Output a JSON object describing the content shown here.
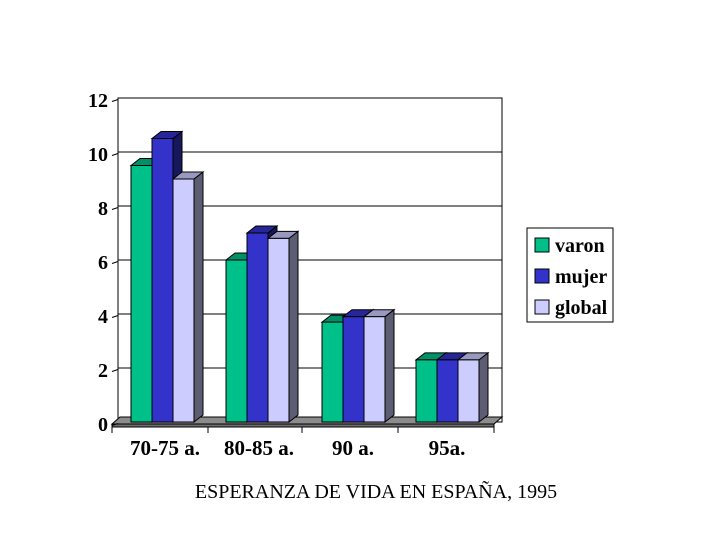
{
  "chart_data": {
    "type": "bar",
    "title": "",
    "xlabel": "",
    "ylabel": "",
    "categories": [
      "70-75 a.",
      "80-85 a.",
      "90 a.",
      "95a."
    ],
    "series": [
      {
        "name": "varon",
        "values": [
          9.5,
          6.0,
          3.7,
          2.3
        ]
      },
      {
        "name": "mujer",
        "values": [
          10.5,
          7.0,
          3.9,
          2.3
        ]
      },
      {
        "name": "global",
        "values": [
          9.0,
          6.8,
          3.9,
          2.3
        ]
      }
    ],
    "ylim": [
      0,
      12
    ],
    "yticks": [
      "0",
      "2",
      "4",
      "6",
      "8",
      "10",
      "12"
    ],
    "grid": true,
    "legend_position": "right",
    "style": "3d-clustered-column"
  },
  "colors": {
    "varon": "#00C08A",
    "mujer": "#3333CC",
    "global": "#CCCCFF"
  },
  "caption": "ESPERANZA DE VIDA EN ESPAÑA, 1995"
}
